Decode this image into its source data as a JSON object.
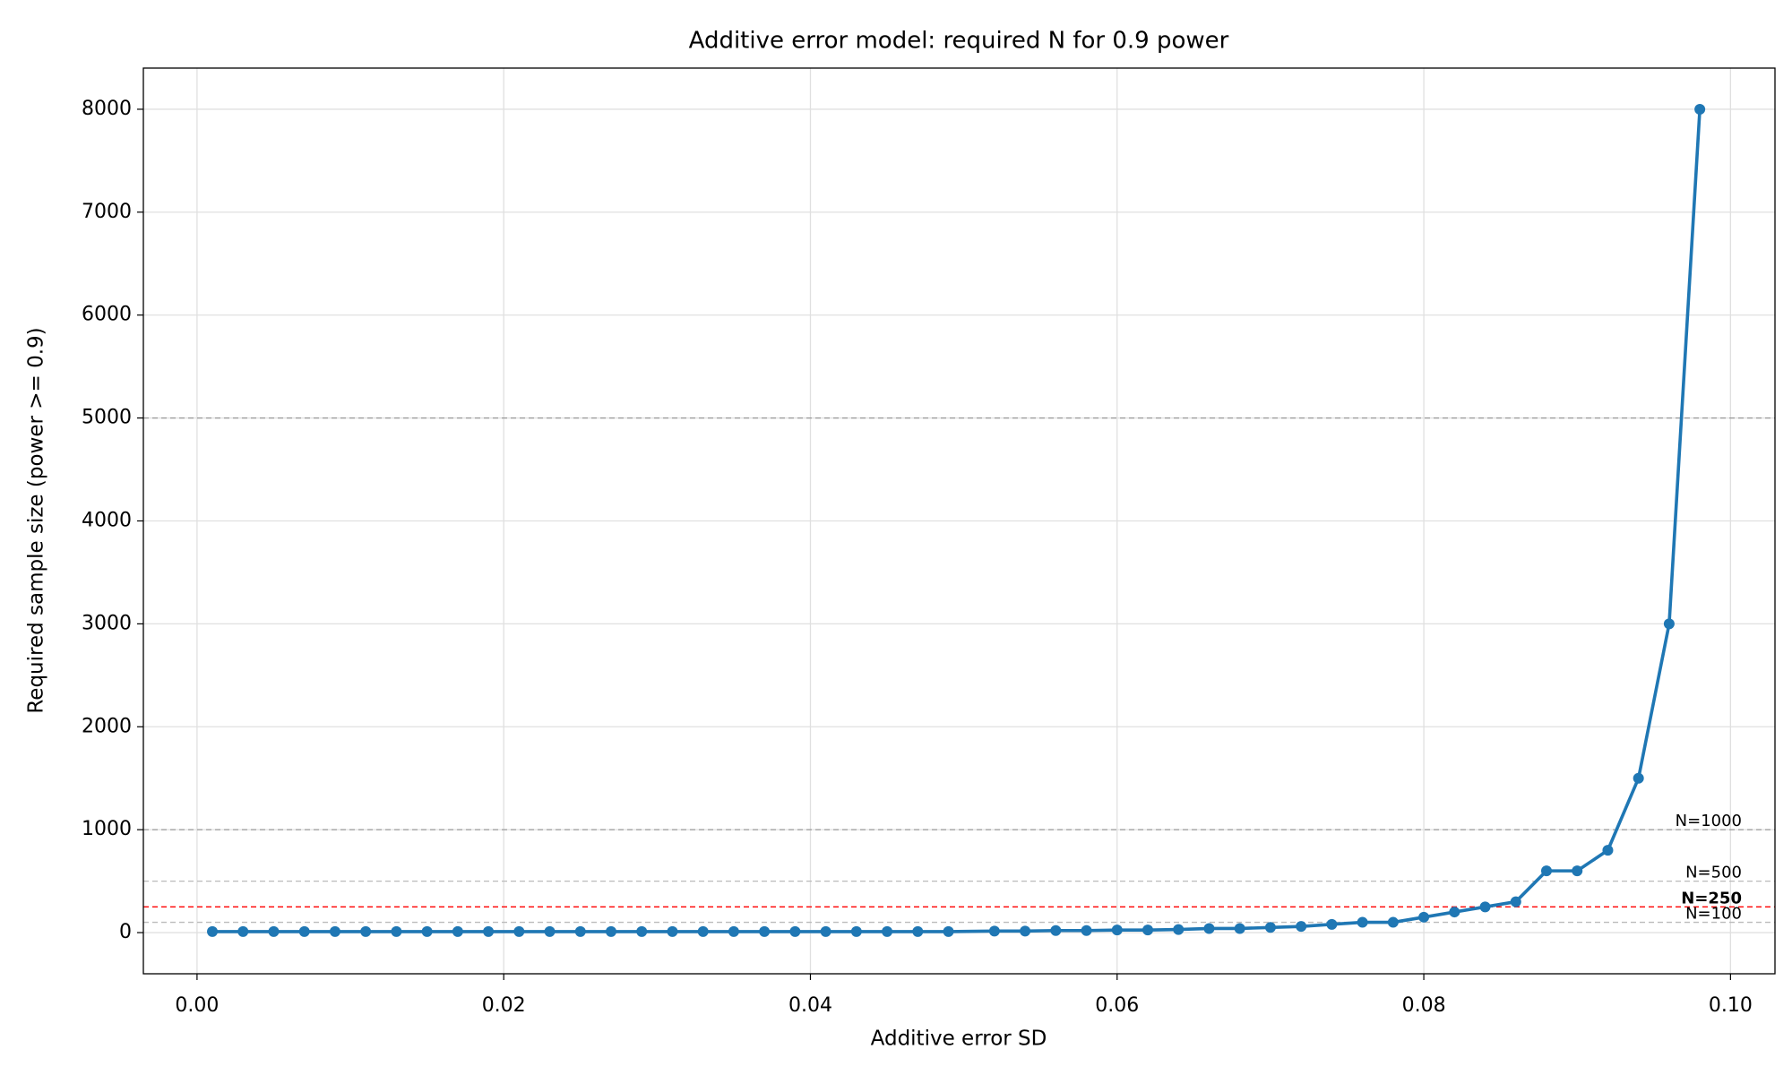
{
  "chart_data": {
    "type": "line",
    "title": "Additive error model: required N for 0.9 power",
    "x_label": "Additive error SD",
    "y_label": "Required sample size (power >= 0.9)",
    "x": [
      0.001,
      0.003,
      0.005,
      0.007,
      0.009,
      0.011,
      0.013,
      0.015,
      0.017,
      0.019,
      0.021,
      0.023,
      0.025,
      0.027,
      0.029,
      0.031,
      0.033,
      0.035,
      0.037,
      0.039,
      0.041,
      0.043,
      0.045,
      0.047,
      0.049,
      0.052,
      0.054,
      0.056,
      0.058,
      0.06,
      0.062,
      0.064,
      0.066,
      0.068,
      0.07,
      0.072,
      0.074,
      0.076,
      0.078,
      0.08,
      0.082,
      0.084,
      0.086,
      0.088,
      0.09,
      0.092,
      0.094,
      0.096,
      0.098
    ],
    "series": [
      {
        "name": "Required N",
        "color": "#1f77b4",
        "values": [
          10,
          10,
          10,
          10,
          10,
          10,
          10,
          10,
          10,
          10,
          10,
          10,
          10,
          10,
          10,
          10,
          10,
          10,
          10,
          10,
          10,
          10,
          10,
          10,
          10,
          15,
          15,
          20,
          20,
          25,
          25,
          30,
          40,
          40,
          50,
          60,
          80,
          100,
          100,
          150,
          200,
          250,
          300,
          600,
          600,
          800,
          1500,
          3000,
          8000
        ]
      }
    ],
    "reference_lines": [
      {
        "value": 5000,
        "color": "#999999"
      },
      {
        "value": 1000,
        "label": "N=1000",
        "color": "#999999"
      },
      {
        "value": 500,
        "label": "N=500",
        "color": "#bbbbbb"
      },
      {
        "value": 250,
        "label": "N=250",
        "color": "#ff0000"
      },
      {
        "value": 100,
        "label": "N=100",
        "color": "#bbbbbb"
      }
    ],
    "xlim": [
      -0.0035,
      0.1029
    ],
    "ylim": [
      -400,
      8400
    ],
    "xticks": [
      {
        "value": 0,
        "label": "0.00"
      },
      {
        "value": 0.02,
        "label": "0.02"
      },
      {
        "value": 0.04,
        "label": "0.04"
      },
      {
        "value": 0.06,
        "label": "0.06"
      },
      {
        "value": 0.08,
        "label": "0.08"
      },
      {
        "value": 0.1,
        "label": "0.10"
      }
    ],
    "yticks": [
      0,
      1000,
      2000,
      3000,
      4000,
      5000,
      6000,
      7000,
      8000
    ],
    "grid": true
  }
}
